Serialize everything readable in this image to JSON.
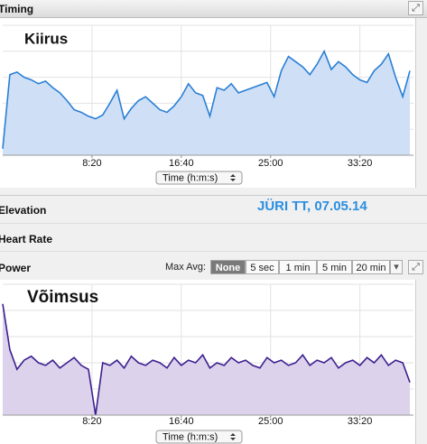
{
  "sections": {
    "timing": "Timing",
    "elevation": "Elevation",
    "heart_rate": "Heart Rate",
    "power": "Power"
  },
  "annotation": "JÜRI TT, 07.05.14",
  "max_avg": {
    "label": "Max Avg:",
    "options": [
      "None",
      "5 sec",
      "1 min",
      "5 min",
      "20 min"
    ],
    "selected": 0
  },
  "chart_data": [
    {
      "type": "area",
      "title": "Kiirus",
      "x_selector": "Time (h:m:s)",
      "color": "#2a7fd4",
      "fill": "#cfe0f6",
      "xlim": [
        0,
        2300
      ],
      "ylim": [
        0,
        100
      ],
      "xticks": [
        {
          "value": 500,
          "label": "8:20"
        },
        {
          "value": 1000,
          "label": "16:40"
        },
        {
          "value": 1500,
          "label": "25:00"
        },
        {
          "value": 2000,
          "label": "33:20"
        }
      ],
      "x": [
        0,
        40,
        80,
        120,
        160,
        200,
        240,
        280,
        320,
        360,
        400,
        440,
        480,
        520,
        560,
        600,
        640,
        680,
        720,
        760,
        800,
        840,
        880,
        920,
        960,
        1000,
        1040,
        1080,
        1120,
        1160,
        1200,
        1240,
        1280,
        1320,
        1360,
        1400,
        1440,
        1480,
        1520,
        1560,
        1600,
        1640,
        1680,
        1720,
        1760,
        1800,
        1840,
        1880,
        1920,
        1960,
        2000,
        2040,
        2080,
        2120,
        2160,
        2200,
        2240,
        2280
      ],
      "values": [
        5,
        62,
        64,
        60,
        58,
        55,
        57,
        52,
        48,
        42,
        35,
        33,
        30,
        28,
        31,
        40,
        50,
        28,
        36,
        42,
        45,
        40,
        35,
        33,
        38,
        45,
        55,
        48,
        46,
        30,
        52,
        50,
        55,
        48,
        50,
        52,
        54,
        56,
        45,
        65,
        76,
        72,
        68,
        62,
        70,
        80,
        66,
        72,
        68,
        62,
        58,
        56,
        65,
        70,
        78,
        60,
        45,
        65
      ]
    },
    {
      "type": "area",
      "title": "Võimsus",
      "x_selector": "Time (h:m:s)",
      "color": "#3b1f8e",
      "fill": "#ddd2ec",
      "xlim": [
        0,
        2300
      ],
      "ylim": [
        0,
        100
      ],
      "xticks": [
        {
          "value": 500,
          "label": "8:20"
        },
        {
          "value": 1000,
          "label": "16:40"
        },
        {
          "value": 1500,
          "label": "25:00"
        },
        {
          "value": 2000,
          "label": "33:20"
        }
      ],
      "x": [
        0,
        40,
        80,
        120,
        160,
        200,
        240,
        280,
        320,
        360,
        400,
        440,
        480,
        520,
        560,
        600,
        640,
        680,
        720,
        760,
        800,
        840,
        880,
        920,
        960,
        1000,
        1040,
        1080,
        1120,
        1160,
        1200,
        1240,
        1280,
        1320,
        1360,
        1400,
        1440,
        1480,
        1520,
        1560,
        1600,
        1640,
        1680,
        1720,
        1760,
        1800,
        1840,
        1880,
        1920,
        1960,
        2000,
        2040,
        2080,
        2120,
        2160,
        2200,
        2240,
        2280
      ],
      "values": [
        85,
        50,
        35,
        42,
        45,
        40,
        38,
        42,
        36,
        40,
        44,
        38,
        35,
        0,
        40,
        38,
        42,
        36,
        45,
        40,
        38,
        42,
        40,
        36,
        44,
        38,
        42,
        40,
        46,
        36,
        40,
        38,
        44,
        40,
        42,
        38,
        36,
        44,
        40,
        42,
        38,
        40,
        46,
        38,
        42,
        40,
        44,
        36,
        40,
        42,
        38,
        44,
        40,
        46,
        38,
        42,
        40,
        25
      ]
    }
  ]
}
